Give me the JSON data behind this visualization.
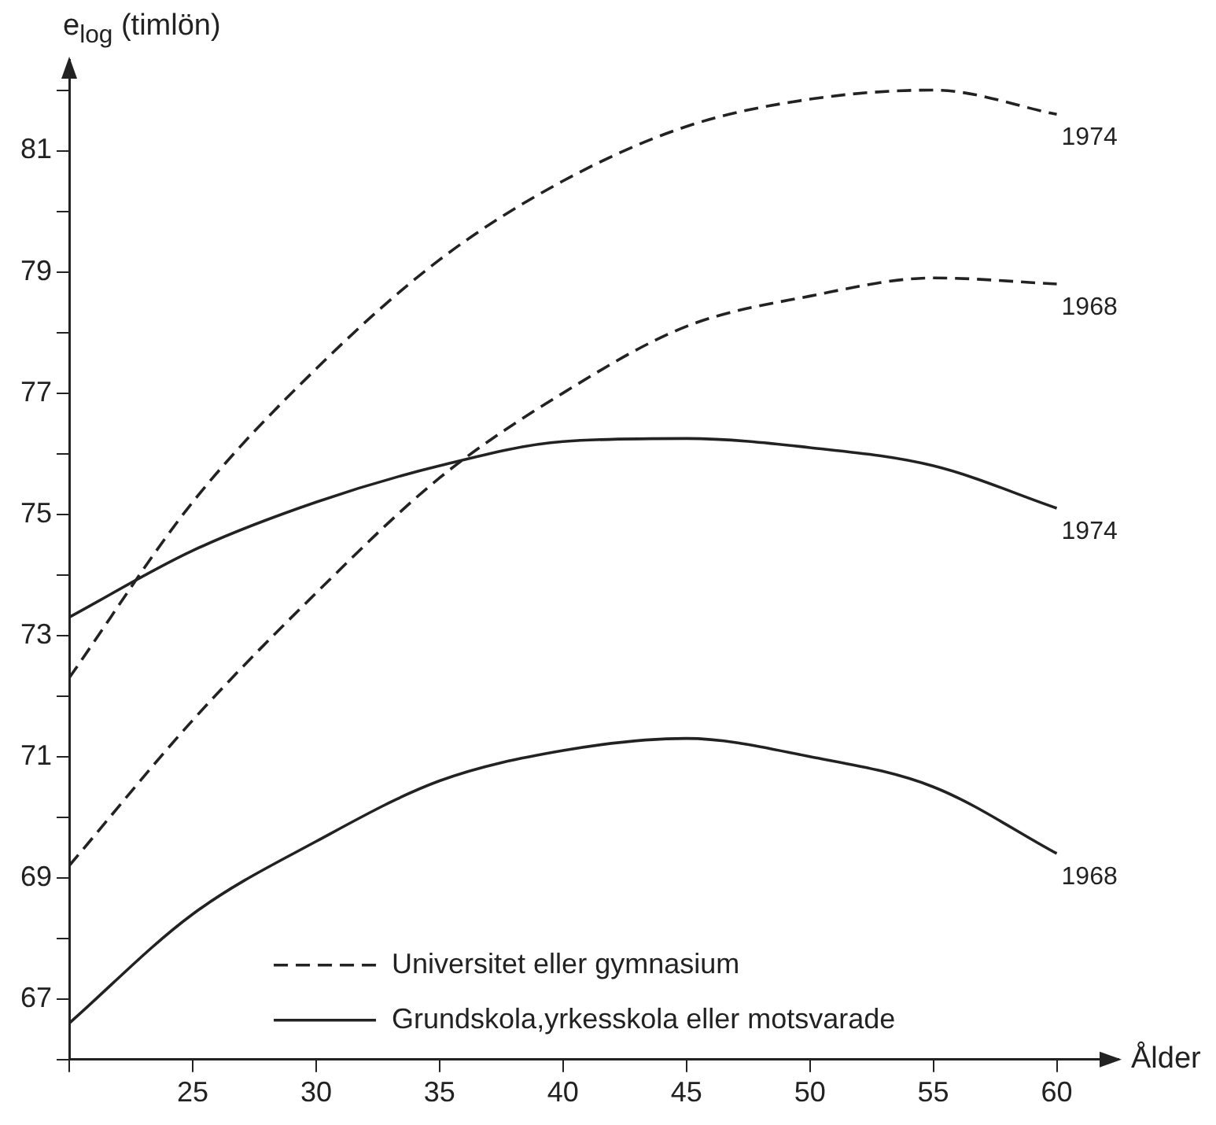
{
  "chart_data": {
    "type": "line",
    "ylabel": "e$_{log}$ (timlön)",
    "xlabel": "Ålder",
    "x": [
      20,
      25,
      30,
      35,
      40,
      45,
      50,
      55,
      60
    ],
    "series": [
      {
        "name": "Universitet eller gymnasium",
        "color": "#222222",
        "line_style": "dashed",
        "values": [
          69.2,
          71.6,
          73.7,
          75.6,
          77.0,
          78.1,
          78.6,
          78.9,
          78.8
        ]
      },
      {
        "color": "#222222",
        "line_style": "dashed",
        "values": [
          72.3,
          75.2,
          77.4,
          79.2,
          80.5,
          81.4,
          81.85,
          82.0,
          81.6
        ]
      },
      {
        "name": "Grundskola,yrkesskola eller motsvarade",
        "color": "#222222",
        "line_style": "solid",
        "values": [
          66.6,
          68.4,
          69.6,
          70.6,
          71.1,
          71.3,
          71.0,
          70.5,
          69.4
        ]
      },
      {
        "color": "#222222",
        "line_style": "solid",
        "values": [
          73.3,
          74.4,
          75.2,
          75.8,
          76.2,
          76.25,
          76.1,
          75.8,
          75.1
        ]
      }
    ],
    "annotations": [
      "1968",
      "1974",
      "1968",
      "1974"
    ],
    "xlim": [
      20,
      62.5
    ],
    "xticks": [
      {
        "value": 20,
        "label": null
      },
      25,
      30,
      35,
      40,
      45,
      50,
      55,
      60
    ],
    "ylim": [
      66,
      82.5
    ],
    "yticks": [
      {
        "value": 66,
        "label": null
      },
      67,
      {
        "value": 68,
        "label": null
      },
      69,
      {
        "value": 70,
        "label": null
      },
      71,
      {
        "value": 72,
        "label": null
      },
      73,
      {
        "value": 74,
        "label": null
      },
      75,
      {
        "value": 76,
        "label": null
      },
      77,
      {
        "value": 78,
        "label": null
      },
      79,
      {
        "value": 80,
        "label": null
      },
      81,
      {
        "value": 82,
        "label": null
      }
    ],
    "grid": false,
    "legend": "bottom right",
    "marker": "none"
  }
}
